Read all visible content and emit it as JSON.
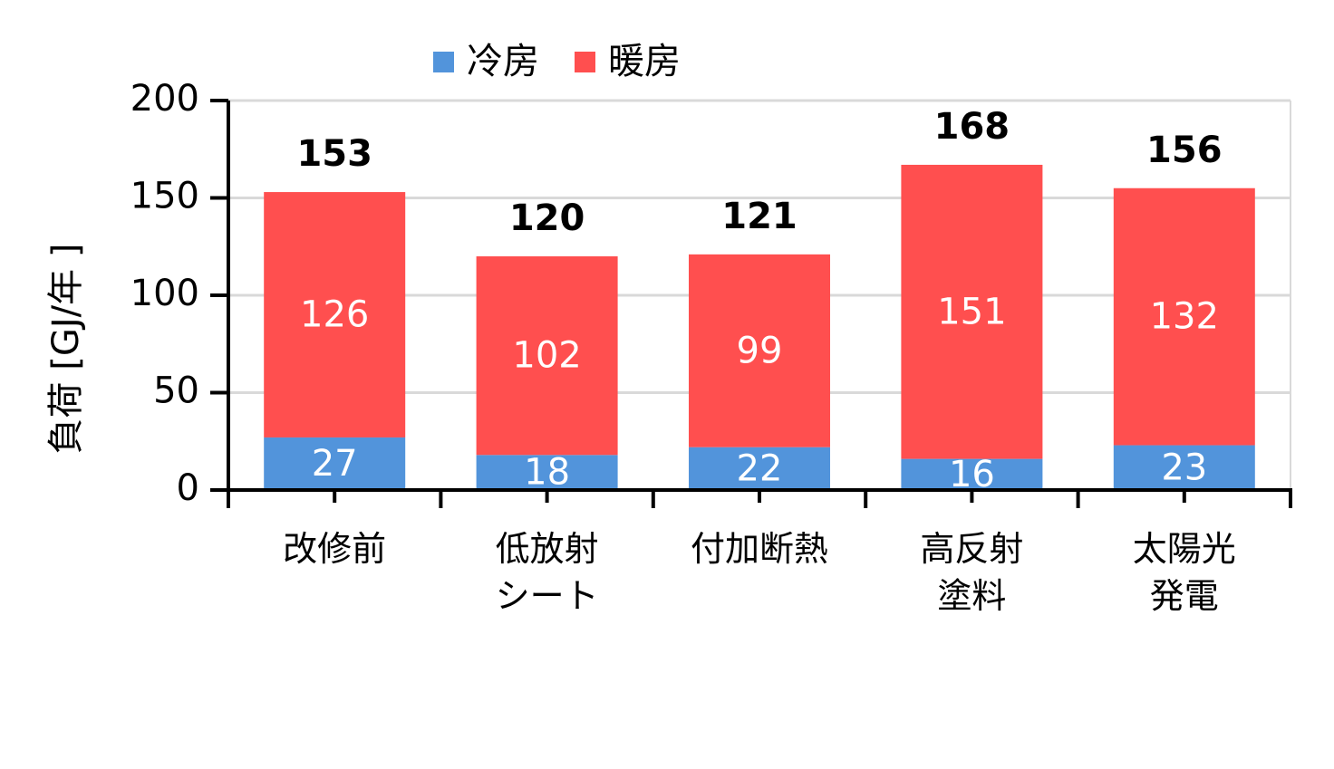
{
  "chart_data": {
    "type": "stacked-bar",
    "categories": [
      "改修前",
      "低放射\nシート",
      "付加断熱",
      "高反射\n塗料",
      "太陽光\n発電"
    ],
    "series": [
      {
        "name": "冷房",
        "color": "#5294db",
        "values": [
          27,
          18,
          22,
          16,
          23
        ]
      },
      {
        "name": "暖房",
        "color": "#ff4f4f",
        "values": [
          126,
          102,
          99,
          151,
          132
        ]
      }
    ],
    "totals": [
      153,
      120,
      121,
      168,
      156
    ],
    "y_label": "負荷 [GJ/年 ]",
    "ylim": [
      0,
      200
    ],
    "yticks": [
      0,
      50,
      100,
      150,
      200
    ],
    "grid": true
  }
}
